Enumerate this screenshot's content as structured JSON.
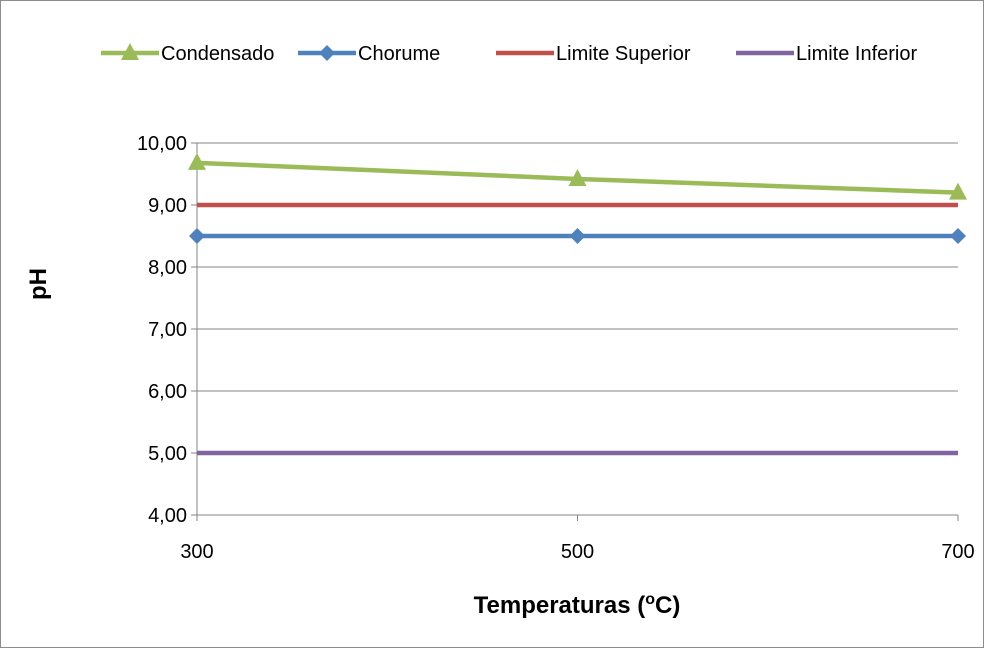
{
  "chart_data": {
    "type": "line",
    "xlabel": "Temperaturas (",
    "xlabel_super": "o",
    "xlabel_suffix": "C)",
    "ylabel": "pH",
    "x": [
      300,
      500,
      700
    ],
    "x_tick_labels": [
      "300",
      "500",
      "700"
    ],
    "ylim": [
      4,
      10
    ],
    "y_ticks": [
      4,
      5,
      6,
      7,
      8,
      9,
      10
    ],
    "y_tick_labels": [
      "4,00",
      "5,00",
      "6,00",
      "7,00",
      "8,00",
      "9,00",
      "10,00"
    ],
    "grid": true,
    "legend_position": "top",
    "series": [
      {
        "name": "Condensado",
        "values": [
          9.68,
          9.42,
          9.2
        ],
        "color": "#9bbb59",
        "marker": "triangle"
      },
      {
        "name": "Chorume",
        "values": [
          8.5,
          8.5,
          8.5
        ],
        "color": "#4f81bd",
        "marker": "diamond"
      },
      {
        "name": "Limite Superior",
        "values": [
          9.0,
          9.0,
          9.0
        ],
        "color": "#c0504d",
        "marker": "none"
      },
      {
        "name": "Limite Inferior",
        "values": [
          5.0,
          5.0,
          5.0
        ],
        "color": "#8064a2",
        "marker": "none"
      }
    ]
  }
}
